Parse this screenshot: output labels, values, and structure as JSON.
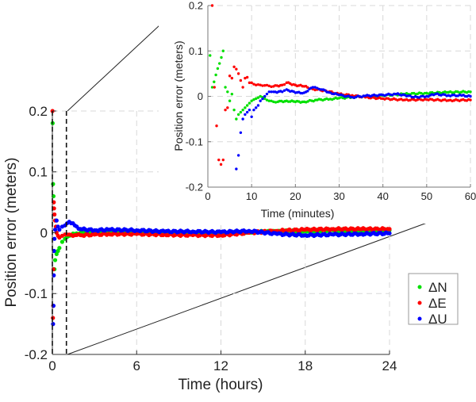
{
  "chart_data": [
    {
      "id": "main",
      "type": "scatter",
      "title": "",
      "xlabel": "Time (hours)",
      "ylabel": "Position error (meters)",
      "xlim": [
        0,
        24
      ],
      "ylim": [
        -0.2,
        0.2
      ],
      "xticks": [
        0,
        6,
        12,
        18,
        24
      ],
      "yticks": [
        -0.2,
        -0.1,
        0,
        0.1,
        0.2
      ],
      "xtick_labels": [
        "0",
        "6",
        "12",
        "18",
        "24"
      ],
      "ytick_labels": [
        "-0.2",
        "-0.1",
        "0",
        "0.1",
        "0.2"
      ],
      "grid": true,
      "zoom_window": {
        "x": [
          0,
          1
        ],
        "y": [
          -0.2,
          0.2
        ],
        "style": "black dashed"
      },
      "legend": {
        "position": "bottom-right",
        "entries": [
          "ΔN",
          "ΔE",
          "ΔU"
        ]
      },
      "series": [
        {
          "name": "ΔN",
          "color": "#00e000",
          "x": [
            0.02,
            0.05,
            0.08,
            0.12,
            0.15,
            0.2,
            0.3,
            0.4,
            0.5,
            0.7,
            0.9,
            1.2,
            1.6,
            2,
            3,
            4,
            6,
            8,
            10,
            12,
            14,
            16,
            18,
            20,
            22,
            24
          ],
          "y": [
            0.18,
            0.08,
            0.06,
            -0.03,
            -0.06,
            -0.045,
            -0.035,
            -0.03,
            -0.025,
            -0.015,
            -0.01,
            -0.005,
            -0.002,
            0.0,
            0.001,
            0.001,
            0.0,
            0.0,
            0.0,
            0.0,
            0.001,
            0.002,
            0.003,
            0.004,
            0.004,
            0.004
          ]
        },
        {
          "name": "ΔE",
          "color": "#ff0000",
          "x": [
            0.01,
            0.04,
            0.06,
            0.08,
            0.1,
            0.12,
            0.15,
            0.2,
            0.25,
            0.3,
            0.4,
            0.5,
            0.7,
            0.9,
            1.2,
            1.6,
            2,
            3,
            4,
            6,
            8,
            10,
            12,
            14,
            16,
            18,
            20,
            22,
            24
          ],
          "y": [
            0.2,
            -0.14,
            -0.12,
            -0.06,
            0.05,
            0.04,
            0.03,
            0.02,
            0.01,
            0.0,
            -0.005,
            -0.008,
            -0.005,
            -0.003,
            -0.003,
            -0.004,
            -0.004,
            -0.003,
            -0.002,
            -0.002,
            -0.003,
            -0.004,
            -0.004,
            0.0,
            0.003,
            0.005,
            0.006,
            0.006,
            0.006
          ]
        },
        {
          "name": "ΔU",
          "color": "#0000ff",
          "x": [
            0.05,
            0.08,
            0.1,
            0.12,
            0.15,
            0.2,
            0.3,
            0.4,
            0.5,
            0.7,
            0.9,
            1.2,
            1.6,
            2,
            3,
            4,
            6,
            8,
            10,
            12,
            14,
            16,
            18,
            20,
            22,
            24
          ],
          "y": [
            -0.15,
            -0.12,
            -0.07,
            -0.03,
            -0.01,
            0.005,
            0.02,
            0.01,
            0.005,
            0.01,
            0.012,
            0.018,
            0.012,
            0.006,
            0.004,
            0.005,
            0.004,
            0.002,
            0.002,
            0.001,
            0.003,
            -0.002,
            -0.004,
            -0.003,
            -0.002,
            -0.001
          ]
        }
      ]
    },
    {
      "id": "inset",
      "type": "scatter",
      "title": "",
      "xlabel": "Time (minutes)",
      "ylabel": "Position error (meters)",
      "xlim": [
        0,
        60
      ],
      "ylim": [
        -0.2,
        0.2
      ],
      "xticks": [
        0,
        10,
        20,
        30,
        40,
        50,
        60
      ],
      "yticks": [
        -0.2,
        -0.1,
        0,
        0.1,
        0.2
      ],
      "xtick_labels": [
        "0",
        "10",
        "20",
        "30",
        "40",
        "50",
        "60"
      ],
      "ytick_labels": [
        "-0.2",
        "-0.1",
        "0",
        "0.1",
        "0.2"
      ],
      "grid": true,
      "series": [
        {
          "name": "ΔN",
          "color": "#00e000",
          "x": [
            0.5,
            1,
            3.5,
            4,
            4.5,
            5,
            5.5,
            6,
            6.5,
            7,
            7.5,
            8,
            8.5,
            9,
            9.5,
            10,
            11,
            12,
            13,
            14,
            15,
            16,
            18,
            20,
            22,
            25,
            28,
            30,
            33,
            36,
            40,
            45,
            50,
            55,
            60
          ],
          "y": [
            0.09,
            0.02,
            0.1,
            0.02,
            0.01,
            -0.01,
            0.005,
            -0.03,
            -0.05,
            -0.04,
            -0.035,
            -0.03,
            -0.025,
            -0.02,
            -0.015,
            -0.01,
            -0.005,
            0.0,
            -0.005,
            -0.01,
            -0.012,
            -0.012,
            -0.01,
            -0.012,
            -0.012,
            -0.008,
            -0.006,
            -0.004,
            -0.002,
            0.0,
            0.002,
            0.005,
            0.007,
            0.009,
            0.01
          ]
        },
        {
          "name": "ΔE",
          "color": "#ff0000",
          "x": [
            1,
            1.5,
            2,
            2.5,
            3,
            3.5,
            4,
            4.5,
            5,
            5.5,
            6,
            6.5,
            7,
            7.5,
            8,
            8.5,
            9,
            9.5,
            10,
            11,
            12,
            13,
            14,
            15,
            17,
            18,
            20,
            22,
            24,
            25,
            27,
            30,
            33,
            36,
            40,
            45,
            50,
            55,
            60
          ],
          "y": [
            0.2,
            0.02,
            -0.065,
            -0.14,
            -0.15,
            -0.14,
            -0.03,
            -0.025,
            0.045,
            0.04,
            0.065,
            0.06,
            0.05,
            0.035,
            0.02,
            0.04,
            0.042,
            0.03,
            0.03,
            0.025,
            0.025,
            0.024,
            0.023,
            0.022,
            0.025,
            0.03,
            0.025,
            0.022,
            0.016,
            0.015,
            0.012,
            0.005,
            0.002,
            -0.002,
            -0.005,
            -0.008,
            -0.007,
            -0.009,
            -0.008
          ]
        },
        {
          "name": "ΔU",
          "color": "#0000ff",
          "x": [
            6.5,
            7,
            7.5,
            8,
            8.5,
            9,
            9.5,
            10,
            10.5,
            11,
            11.5,
            12,
            13,
            14,
            15,
            17,
            18,
            20,
            22,
            24,
            25,
            26,
            28,
            30,
            33,
            36,
            40,
            43,
            45,
            47,
            50,
            52,
            55,
            58,
            60
          ],
          "y": [
            -0.16,
            -0.13,
            -0.08,
            -0.05,
            -0.04,
            -0.035,
            -0.03,
            -0.045,
            -0.03,
            -0.025,
            -0.02,
            -0.01,
            0.0,
            0.01,
            0.01,
            0.01,
            0.015,
            0.008,
            0.008,
            0.02,
            0.018,
            0.015,
            0.008,
            0.003,
            -0.002,
            0.001,
            0.003,
            0.005,
            0.003,
            -0.002,
            0.0,
            0.005,
            0.002,
            0.002,
            0.0
          ]
        }
      ]
    }
  ]
}
